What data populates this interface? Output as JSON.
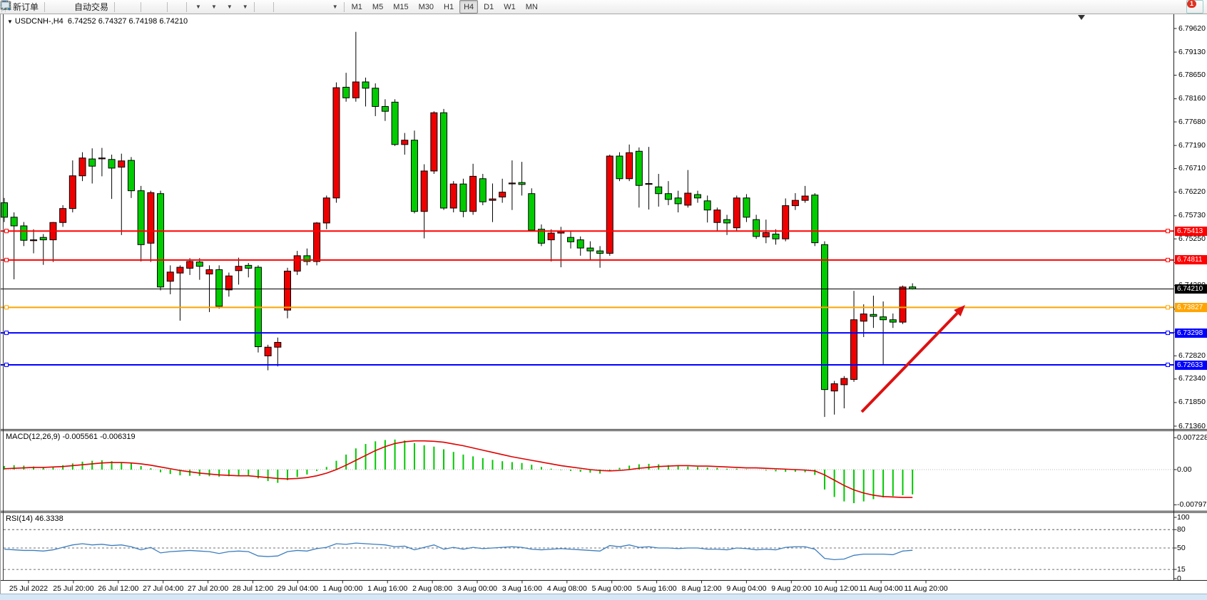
{
  "toolbar": {
    "new_order_label": "新订单",
    "auto_trading_label": "自动交易",
    "timeframes": [
      "M1",
      "M5",
      "M15",
      "M30",
      "H1",
      "H4",
      "D1",
      "W1",
      "MN"
    ],
    "active_timeframe": "H4",
    "notification_badge": "1"
  },
  "chart": {
    "title": {
      "symbol": "USDCNH-,H4",
      "quotes": "6.74252 6.74327 6.74198 6.74210"
    }
  },
  "indicators": {
    "macd": {
      "title": "MACD(12,26,9)",
      "value_main": "-0.005561",
      "value_signal": "-0.006319"
    },
    "rsi": {
      "title": "RSI(14)",
      "value": "46.3338"
    }
  },
  "colors": {
    "up_candle": "#EE0000",
    "down_candle": "#00CC00",
    "candle_outline": "#000000",
    "resistance_line": "#FF0000",
    "support_line": "#0000FF",
    "pivot_line": "#FFA500",
    "bid_line": "#000000",
    "macd_hist": "#00C800",
    "macd_signal": "#E00000",
    "rsi_line": "#3C7EBF",
    "arrow": "#DD1111"
  },
  "chart_data": {
    "type": "candlestick",
    "symbol": "USDCNH",
    "period": "H4",
    "current_ohlc": {
      "open": "6.74252",
      "high": "6.74327",
      "low": "6.74198",
      "close": "6.74210"
    },
    "ylim": [
      6.7136,
      6.7962
    ],
    "price_ticks": [
      "6.79620",
      "6.79130",
      "6.78650",
      "6.78160",
      "6.77680",
      "6.77190",
      "6.76710",
      "6.76220",
      "6.75730",
      "6.75250",
      "6.74760",
      "6.74280",
      "6.73790",
      "6.73310",
      "6.72820",
      "6.72340",
      "6.71850",
      "6.71360"
    ],
    "time_labels": [
      "25 Jul 2022",
      "25 Jul 20:00",
      "26 Jul 12:00",
      "27 Jul 04:00",
      "27 Jul 20:00",
      "28 Jul 12:00",
      "29 Jul 04:00",
      "1 Aug 00:00",
      "1 Aug 16:00",
      "2 Aug 08:00",
      "3 Aug 00:00",
      "3 Aug 16:00",
      "4 Aug 08:00",
      "5 Aug 00:00",
      "5 Aug 16:00",
      "8 Aug 12:00",
      "9 Aug 04:00",
      "9 Aug 20:00",
      "10 Aug 12:00",
      "11 Aug 04:00",
      "11 Aug 20:00"
    ],
    "candles": [
      [
        6.76,
        6.761,
        6.756,
        6.757
      ],
      [
        6.757,
        6.758,
        6.7441,
        6.7552
      ],
      [
        6.7552,
        6.756,
        6.751,
        6.7522
      ],
      [
        6.7522,
        6.7545,
        6.7495,
        6.7523
      ],
      [
        6.7528,
        6.7535,
        6.7471,
        6.7523
      ],
      [
        6.7523,
        6.756,
        6.7477,
        6.7559
      ],
      [
        6.7559,
        6.7595,
        6.755,
        6.7588
      ],
      [
        6.7588,
        6.7688,
        6.758,
        6.7656
      ],
      [
        6.7656,
        6.7705,
        6.7645,
        6.7693
      ],
      [
        6.7691,
        6.7713,
        6.764,
        6.7676
      ],
      [
        6.7692,
        6.7714,
        6.7655,
        6.7693
      ],
      [
        6.769,
        6.77,
        6.7608,
        6.7672
      ],
      [
        6.7674,
        6.7702,
        6.7533,
        6.7687
      ],
      [
        6.7688,
        6.7695,
        6.761,
        6.7625
      ],
      [
        6.7625,
        6.7635,
        6.7478,
        6.7513
      ],
      [
        6.7516,
        6.7625,
        6.7477,
        6.7621
      ],
      [
        6.7619,
        6.7625,
        6.7418,
        6.7425
      ],
      [
        6.7437,
        6.747,
        6.741,
        6.7456
      ],
      [
        6.7454,
        6.747,
        6.7355,
        6.7466
      ],
      [
        6.7464,
        6.7485,
        6.745,
        6.7478
      ],
      [
        6.7477,
        6.7485,
        6.744,
        6.7468
      ],
      [
        6.7452,
        6.747,
        6.7373,
        6.7461
      ],
      [
        6.7461,
        6.747,
        6.738,
        6.7385
      ],
      [
        6.7419,
        6.7455,
        6.7405,
        6.7448
      ],
      [
        6.7459,
        6.7486,
        6.743,
        6.7468
      ],
      [
        6.747,
        6.7475,
        6.7445,
        6.7464
      ],
      [
        6.7466,
        6.747,
        6.7289,
        6.7301
      ],
      [
        6.7282,
        6.7305,
        6.7252,
        6.73
      ],
      [
        6.73,
        6.732,
        6.726,
        6.731
      ],
      [
        6.7377,
        6.7465,
        6.736,
        6.7458
      ],
      [
        6.7458,
        6.75,
        6.745,
        6.749
      ],
      [
        6.749,
        6.7505,
        6.747,
        6.7478
      ],
      [
        6.7478,
        6.756,
        6.747,
        6.7558
      ],
      [
        6.7558,
        6.7615,
        6.7545,
        6.761
      ],
      [
        6.761,
        6.785,
        6.76,
        6.7839
      ],
      [
        6.784,
        6.787,
        6.781,
        6.7818
      ],
      [
        6.7818,
        6.7955,
        6.781,
        6.7851
      ],
      [
        6.7851,
        6.786,
        6.78,
        6.7838
      ],
      [
        6.7838,
        6.7848,
        6.778,
        6.78
      ],
      [
        6.78,
        6.7815,
        6.777,
        6.779
      ],
      [
        6.7809,
        6.7815,
        6.7718,
        6.7721
      ],
      [
        6.7721,
        6.7745,
        6.77,
        6.773
      ],
      [
        6.773,
        6.775,
        6.7578,
        6.7582
      ],
      [
        6.7582,
        6.768,
        6.7526,
        6.7666
      ],
      [
        6.7666,
        6.779,
        6.766,
        6.7787
      ],
      [
        6.7787,
        6.7795,
        6.7585,
        6.7589
      ],
      [
        6.7589,
        6.7645,
        6.758,
        6.7639
      ],
      [
        6.7639,
        6.765,
        6.757,
        6.7582
      ],
      [
        6.7582,
        6.7681,
        6.7575,
        6.7655
      ],
      [
        6.765,
        6.766,
        6.7595,
        6.7602
      ],
      [
        6.7605,
        6.764,
        6.756,
        6.7608
      ],
      [
        6.7612,
        6.765,
        6.76,
        6.7622
      ],
      [
        6.764,
        6.7688,
        6.7585,
        6.7641
      ],
      [
        6.7642,
        6.7685,
        6.7615,
        6.7638
      ],
      [
        6.7619,
        6.763,
        6.754,
        6.7543
      ],
      [
        6.7545,
        6.7555,
        6.751,
        6.7516
      ],
      [
        6.7523,
        6.7545,
        6.7478,
        6.7537
      ],
      [
        6.7537,
        6.755,
        6.7466,
        6.754
      ],
      [
        6.7528,
        6.754,
        6.7505,
        6.7519
      ],
      [
        6.7523,
        6.753,
        6.749,
        6.7506
      ],
      [
        6.7506,
        6.752,
        6.748,
        6.75
      ],
      [
        6.75,
        6.751,
        6.7465,
        6.7495
      ],
      [
        6.7495,
        6.77,
        6.749,
        6.7697
      ],
      [
        6.7697,
        6.7705,
        6.7645,
        6.765
      ],
      [
        6.765,
        6.7721,
        6.7645,
        6.7704
      ],
      [
        6.7707,
        6.7715,
        6.759,
        6.7636
      ],
      [
        6.764,
        6.7716,
        6.7586,
        6.764
      ],
      [
        6.7633,
        6.766,
        6.7592,
        6.7619
      ],
      [
        6.7619,
        6.7645,
        6.7595,
        6.7607
      ],
      [
        6.761,
        6.7625,
        6.758,
        6.7598
      ],
      [
        6.7595,
        6.7668,
        6.759,
        6.762
      ],
      [
        6.7617,
        6.7625,
        6.76,
        6.761
      ],
      [
        6.7604,
        6.7615,
        6.7559,
        6.7585
      ],
      [
        6.7559,
        6.759,
        6.754,
        6.7585
      ],
      [
        6.7565,
        6.7575,
        6.7533,
        6.7558
      ],
      [
        6.7548,
        6.7615,
        6.754,
        6.761
      ],
      [
        6.761,
        6.7618,
        6.756,
        6.757
      ],
      [
        6.7565,
        6.7575,
        6.7525,
        6.753
      ],
      [
        6.7529,
        6.7565,
        6.7516,
        6.7538
      ],
      [
        6.7535,
        6.7545,
        6.7513,
        6.7525
      ],
      [
        6.7525,
        6.7609,
        6.752,
        6.7594
      ],
      [
        6.7594,
        6.762,
        6.7585,
        6.7605
      ],
      [
        6.7605,
        6.7635,
        6.76,
        6.7614
      ],
      [
        6.7616,
        6.762,
        6.751,
        6.7517
      ],
      [
        6.7513,
        6.752,
        6.7155,
        6.7212
      ],
      [
        6.7209,
        6.723,
        6.716,
        6.7224
      ],
      [
        6.7222,
        6.724,
        6.7173,
        6.7235
      ],
      [
        6.7233,
        6.7417,
        6.7228,
        6.7357
      ],
      [
        6.7354,
        6.7389,
        6.7321,
        6.7369
      ],
      [
        6.7368,
        6.7407,
        6.734,
        6.7364
      ],
      [
        6.7363,
        6.7395,
        6.7262,
        6.7357
      ],
      [
        6.7357,
        6.737,
        6.734,
        6.7352
      ],
      [
        6.7352,
        6.7428,
        6.7348,
        6.7425
      ],
      [
        6.74252,
        6.74327,
        6.74198,
        6.7421
      ]
    ],
    "lines": [
      {
        "price": 6.75413,
        "label": "6.75413",
        "color": "#FF0000",
        "role": "resistance"
      },
      {
        "price": 6.74811,
        "label": "6.74811",
        "color": "#FF0000",
        "role": "resistance"
      },
      {
        "price": 6.7421,
        "label": "6.74210",
        "color": "#000000",
        "role": "bid"
      },
      {
        "price": 6.73827,
        "label": "6.73827",
        "color": "#FFA500",
        "role": "pivot"
      },
      {
        "price": 6.73298,
        "label": "6.73298",
        "color": "#0000FF",
        "role": "support"
      },
      {
        "price": 6.72633,
        "label": "6.72633",
        "color": "#0000FF",
        "role": "support"
      }
    ],
    "trend_arrow": {
      "from": [
        1208,
        578
      ],
      "to": [
        1353,
        428
      ]
    },
    "macd": {
      "params": "12,26,9",
      "ticks": [
        "0.007228",
        "0.00",
        "-0.007979"
      ],
      "hist": [
        0.0008,
        0.001,
        0.0009,
        0.0007,
        0.0005,
        0.0006,
        0.001,
        0.0014,
        0.0018,
        0.002,
        0.0021,
        0.0019,
        0.0017,
        0.0014,
        0.0008,
        0.0003,
        -0.0006,
        -0.001,
        -0.0013,
        -0.0014,
        -0.0014,
        -0.0015,
        -0.0016,
        -0.0015,
        -0.0013,
        -0.0013,
        -0.002,
        -0.0026,
        -0.003,
        -0.0024,
        -0.0017,
        -0.0011,
        -0.0003,
        0.0006,
        0.002,
        0.0034,
        0.0048,
        0.0058,
        0.0064,
        0.0067,
        0.0068,
        0.0066,
        0.006,
        0.0055,
        0.0052,
        0.0046,
        0.004,
        0.0034,
        0.003,
        0.0026,
        0.0022,
        0.0019,
        0.0017,
        0.0015,
        0.0011,
        0.0006,
        0.0002,
        -0.0001,
        -0.0003,
        -0.0005,
        -0.0007,
        -0.0009,
        -0.0002,
        0.0004,
        0.0009,
        0.0012,
        0.0013,
        0.0012,
        0.001,
        0.0008,
        0.0007,
        0.0006,
        0.0005,
        0.0004,
        0.0002,
        0.0002,
        0.0001,
        0.0,
        -0.0002,
        -0.0004,
        -0.0005,
        -0.0005,
        -0.0006,
        -0.0012,
        -0.0045,
        -0.0062,
        -0.0072,
        -0.0076,
        -0.0072,
        -0.0067,
        -0.0063,
        -0.006,
        -0.0058,
        -0.0056
      ],
      "signal": [
        0.0002,
        0.0003,
        0.0004,
        0.0005,
        0.0005,
        0.0006,
        0.0007,
        0.0009,
        0.0011,
        0.0013,
        0.0015,
        0.0016,
        0.0016,
        0.0015,
        0.0013,
        0.001,
        0.0006,
        0.0002,
        -0.0002,
        -0.0005,
        -0.0008,
        -0.001,
        -0.0012,
        -0.0013,
        -0.0014,
        -0.0014,
        -0.0016,
        -0.0018,
        -0.002,
        -0.0021,
        -0.002,
        -0.0018,
        -0.0014,
        -0.0008,
        0.0,
        0.001,
        0.0021,
        0.0032,
        0.0043,
        0.0052,
        0.0059,
        0.0063,
        0.0065,
        0.0065,
        0.0064,
        0.0062,
        0.0058,
        0.0054,
        0.0049,
        0.0044,
        0.0039,
        0.0034,
        0.0029,
        0.0025,
        0.0021,
        0.0017,
        0.0013,
        0.0009,
        0.0006,
        0.0003,
        0.0,
        -0.0002,
        -0.0003,
        -0.0002,
        0.0,
        0.0003,
        0.0005,
        0.0007,
        0.0008,
        0.0009,
        0.0009,
        0.0008,
        0.0008,
        0.0007,
        0.0006,
        0.0005,
        0.0004,
        0.0004,
        0.0003,
        0.0002,
        0.0001,
        0.0,
        -0.0001,
        -0.0003,
        -0.0012,
        -0.0024,
        -0.0036,
        -0.0046,
        -0.0053,
        -0.0058,
        -0.0061,
        -0.0062,
        -0.0063,
        -0.0063
      ]
    },
    "rsi": {
      "period": 14,
      "ticks": [
        "100",
        "80",
        "50",
        "15",
        "0"
      ],
      "levels": [
        80,
        50,
        15
      ],
      "values": [
        48,
        47,
        46,
        46,
        45,
        47,
        51,
        55,
        57,
        55,
        56,
        54,
        55,
        52,
        47,
        51,
        42,
        44,
        45,
        46,
        45,
        44,
        41,
        44,
        45,
        44,
        37,
        36,
        37,
        44,
        46,
        45,
        49,
        51,
        57,
        56,
        58,
        57,
        56,
        55,
        52,
        53,
        47,
        51,
        55,
        48,
        51,
        48,
        51,
        49,
        50,
        51,
        52,
        51,
        48,
        47,
        48,
        49,
        48,
        47,
        46,
        45,
        54,
        52,
        55,
        51,
        52,
        50,
        50,
        49,
        50,
        50,
        48,
        48,
        47,
        50,
        49,
        47,
        48,
        47,
        51,
        52,
        52,
        48,
        33,
        31,
        32,
        38,
        40,
        40,
        40,
        39,
        45,
        46.3
      ]
    }
  }
}
